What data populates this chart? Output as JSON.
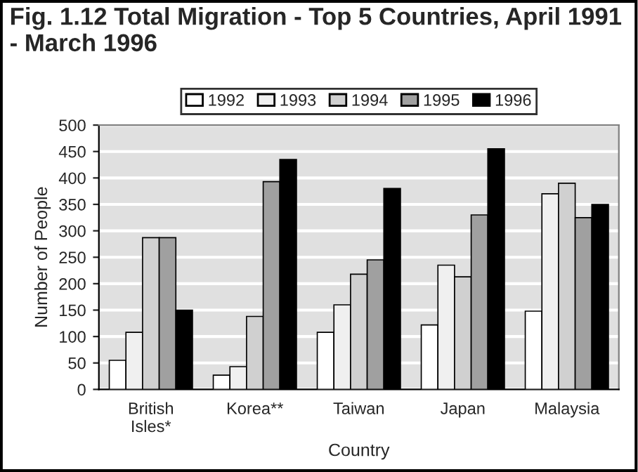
{
  "chart_data": {
    "type": "bar",
    "title": "Fig. 1.12 Total Migration - Top 5 Countries, April 1991 - March 1996",
    "xlabel": "Country",
    "ylabel": "Number of People",
    "categories": [
      "British\nIsles*",
      "Korea**",
      "Taiwan",
      "Japan",
      "Malaysia"
    ],
    "series": [
      {
        "name": "1992",
        "color": "#ffffff",
        "values": [
          55,
          27,
          108,
          122,
          148
        ]
      },
      {
        "name": "1993",
        "color": "#f0f0f0",
        "values": [
          108,
          43,
          160,
          235,
          370
        ]
      },
      {
        "name": "1994",
        "color": "#d0d0d0",
        "values": [
          287,
          138,
          218,
          213,
          390
        ]
      },
      {
        "name": "1995",
        "color": "#a0a0a0",
        "values": [
          287,
          393,
          245,
          330,
          325
        ]
      },
      {
        "name": "1996",
        "color": "#000000",
        "values": [
          150,
          435,
          380,
          455,
          350
        ]
      }
    ],
    "ylim": [
      0,
      500
    ],
    "yticks": [
      0,
      50,
      100,
      150,
      200,
      250,
      300,
      350,
      400,
      450,
      500
    ],
    "grid": "y",
    "legend": "top"
  }
}
